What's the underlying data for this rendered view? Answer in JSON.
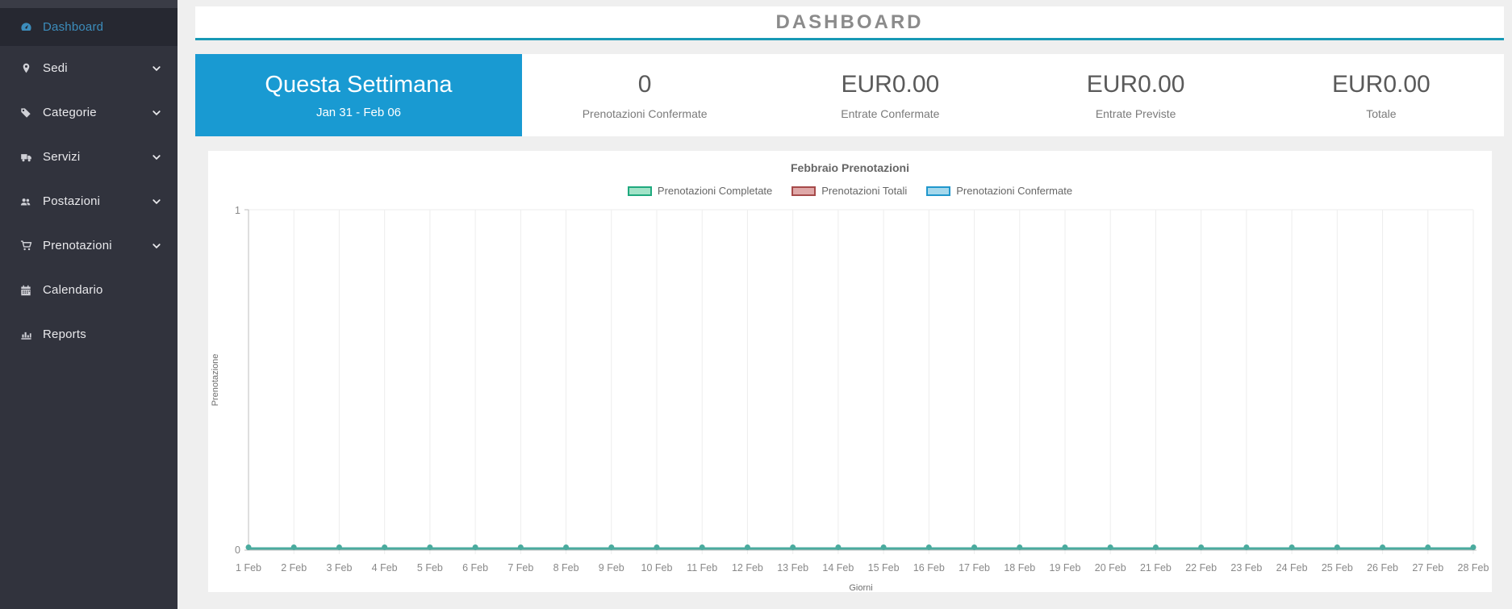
{
  "sidebar": {
    "items": [
      {
        "label": "Dashboard",
        "icon": "tachometer-icon",
        "active": true,
        "has_submenu": false
      },
      {
        "label": "Sedi",
        "icon": "map-marker-icon",
        "active": false,
        "has_submenu": true
      },
      {
        "label": "Categorie",
        "icon": "tag-icon",
        "active": false,
        "has_submenu": true
      },
      {
        "label": "Servizi",
        "icon": "truck-icon",
        "active": false,
        "has_submenu": true
      },
      {
        "label": "Postazioni",
        "icon": "users-icon",
        "active": false,
        "has_submenu": true
      },
      {
        "label": "Prenotazioni",
        "icon": "cart-icon",
        "active": false,
        "has_submenu": true
      },
      {
        "label": "Calendario",
        "icon": "calendar-icon",
        "active": false,
        "has_submenu": false
      },
      {
        "label": "Reports",
        "icon": "bar-chart-icon",
        "active": false,
        "has_submenu": false
      }
    ]
  },
  "header": {
    "title": "DASHBOARD"
  },
  "stats": {
    "period": {
      "title": "Questa Settimana",
      "range": "Jan 31 - Feb 06"
    },
    "items": [
      {
        "value": "0",
        "label": "Prenotazioni Confermate"
      },
      {
        "value": "EUR0.00",
        "label": "Entrate Confermate"
      },
      {
        "value": "EUR0.00",
        "label": "Entrate Previste"
      },
      {
        "value": "EUR0.00",
        "label": "Totale"
      }
    ]
  },
  "chart_data": {
    "type": "line",
    "title": "Febbraio Prenotazioni",
    "xlabel": "Giorni",
    "ylabel": "Prenotazione",
    "ylim": [
      0,
      1
    ],
    "yticks": [
      "0",
      "1"
    ],
    "grid": true,
    "legend_position": "top",
    "categories": [
      "1 Feb",
      "2 Feb",
      "3 Feb",
      "4 Feb",
      "5 Feb",
      "6 Feb",
      "7 Feb",
      "8 Feb",
      "9 Feb",
      "10 Feb",
      "11 Feb",
      "12 Feb",
      "13 Feb",
      "14 Feb",
      "15 Feb",
      "16 Feb",
      "17 Feb",
      "18 Feb",
      "19 Feb",
      "20 Feb",
      "21 Feb",
      "22 Feb",
      "23 Feb",
      "24 Feb",
      "25 Feb",
      "26 Feb",
      "27 Feb",
      "28 Feb"
    ],
    "series": [
      {
        "name": "Prenotazioni Completate",
        "fill": "#A2E3C8",
        "border": "#1FA97E",
        "values": [
          0,
          0,
          0,
          0,
          0,
          0,
          0,
          0,
          0,
          0,
          0,
          0,
          0,
          0,
          0,
          0,
          0,
          0,
          0,
          0,
          0,
          0,
          0,
          0,
          0,
          0,
          0,
          0
        ]
      },
      {
        "name": "Prenotazioni Totali",
        "fill": "#DFA8A8",
        "border": "#A64A4A",
        "values": [
          0,
          0,
          0,
          0,
          0,
          0,
          0,
          0,
          0,
          0,
          0,
          0,
          0,
          0,
          0,
          0,
          0,
          0,
          0,
          0,
          0,
          0,
          0,
          0,
          0,
          0,
          0,
          0
        ]
      },
      {
        "name": "Prenotazioni Confermate",
        "fill": "#A5D8EC",
        "border": "#2097CC",
        "values": [
          0,
          0,
          0,
          0,
          0,
          0,
          0,
          0,
          0,
          0,
          0,
          0,
          0,
          0,
          0,
          0,
          0,
          0,
          0,
          0,
          0,
          0,
          0,
          0,
          0,
          0,
          0,
          0
        ]
      }
    ],
    "line_color": "#4AAB9E"
  },
  "colors": {
    "accent_teal_rule": "#1899B5",
    "primary_blue": "#199AD2",
    "sidebar_bg": "#31333D",
    "sidebar_active_bg": "#262831",
    "active_link_blue": "#3C8DBC",
    "chart_line_teal": "#4AAB9E"
  }
}
